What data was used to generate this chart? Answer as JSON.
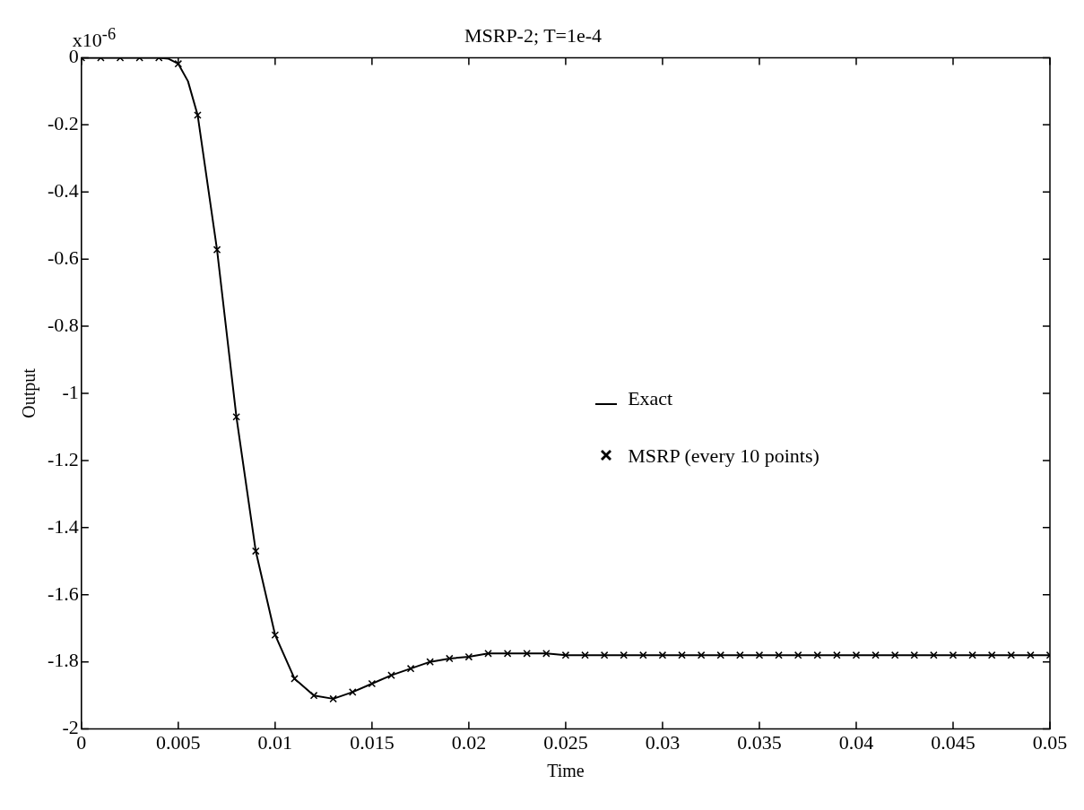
{
  "chart_data": {
    "type": "line",
    "title": "MSRP-2; T=1e-4",
    "xlabel": "Time",
    "ylabel": "Output",
    "annotations": [
      "x10$^{-6}$"
    ],
    "xlim": [
      0,
      0.05
    ],
    "xticks": [
      0,
      0.005,
      0.01,
      0.015,
      0.02,
      0.025,
      0.03,
      0.035,
      0.04,
      0.045,
      0.05
    ],
    "ylim": [
      -2,
      0
    ],
    "yticks": [
      0,
      -0.2,
      -0.4,
      -0.6,
      -0.8,
      -1,
      -1.2,
      -1.4,
      -1.6,
      -1.8,
      -2
    ],
    "grid": false,
    "legend": "right",
    "series": [
      {
        "name": "Exact",
        "type": "line",
        "color": "#000000",
        "marker": "none",
        "line_style": "solid",
        "x": [
          0,
          0.001,
          0.002,
          0.003,
          0.004,
          0.0045,
          0.005,
          0.0055,
          0.006,
          0.007,
          0.008,
          0.009,
          0.01,
          0.011,
          0.012,
          0.013,
          0.014,
          0.015,
          0.016,
          0.017,
          0.018,
          0.019,
          0.02,
          0.021,
          0.022,
          0.023,
          0.024,
          0.025,
          0.026,
          0.027,
          0.028,
          0.029,
          0.03,
          0.031,
          0.032,
          0.033,
          0.034,
          0.035,
          0.036,
          0.037,
          0.038,
          0.039,
          0.04,
          0.041,
          0.042,
          0.043,
          0.044,
          0.045,
          0.046,
          0.047,
          0.048,
          0.049,
          0.05
        ],
        "values": [
          0,
          0,
          0,
          0,
          0,
          -0.003,
          -0.018,
          -0.07,
          -0.171,
          -0.572,
          -1.07,
          -1.47,
          -1.72,
          -1.85,
          -1.9,
          -1.91,
          -1.89,
          -1.865,
          -1.84,
          -1.82,
          -1.8,
          -1.79,
          -1.785,
          -1.775,
          -1.775,
          -1.775,
          -1.775,
          -1.78,
          -1.78,
          -1.78,
          -1.78,
          -1.78,
          -1.78,
          -1.78,
          -1.78,
          -1.78,
          -1.78,
          -1.78,
          -1.78,
          -1.78,
          -1.78,
          -1.78,
          -1.78,
          -1.78,
          -1.78,
          -1.78,
          -1.78,
          -1.78,
          -1.78,
          -1.78,
          -1.78,
          -1.78,
          -1.78
        ]
      },
      {
        "name": "MSRP (every 10 points)",
        "type": "scatter",
        "color": "#000000",
        "marker": "cross",
        "x": [
          0,
          0.001,
          0.002,
          0.003,
          0.004,
          0.005,
          0.006,
          0.007,
          0.008,
          0.009,
          0.01,
          0.011,
          0.012,
          0.013,
          0.014,
          0.015,
          0.016,
          0.017,
          0.018,
          0.019,
          0.02,
          0.021,
          0.022,
          0.023,
          0.024,
          0.025,
          0.026,
          0.027,
          0.028,
          0.029,
          0.03,
          0.031,
          0.032,
          0.033,
          0.034,
          0.035,
          0.036,
          0.037,
          0.038,
          0.039,
          0.04,
          0.041,
          0.042,
          0.043,
          0.044,
          0.045,
          0.046,
          0.047,
          0.048,
          0.049,
          0.05
        ],
        "values": [
          0,
          0,
          0,
          0,
          0,
          -0.018,
          -0.171,
          -0.572,
          -1.07,
          -1.47,
          -1.72,
          -1.85,
          -1.9,
          -1.91,
          -1.89,
          -1.865,
          -1.84,
          -1.82,
          -1.8,
          -1.79,
          -1.785,
          -1.775,
          -1.775,
          -1.775,
          -1.775,
          -1.78,
          -1.78,
          -1.78,
          -1.78,
          -1.78,
          -1.78,
          -1.78,
          -1.78,
          -1.78,
          -1.78,
          -1.78,
          -1.78,
          -1.78,
          -1.78,
          -1.78,
          -1.78,
          -1.78,
          -1.78,
          -1.78,
          -1.78,
          -1.78,
          -1.78,
          -1.78,
          -1.78,
          -1.78,
          -1.78
        ]
      }
    ]
  }
}
